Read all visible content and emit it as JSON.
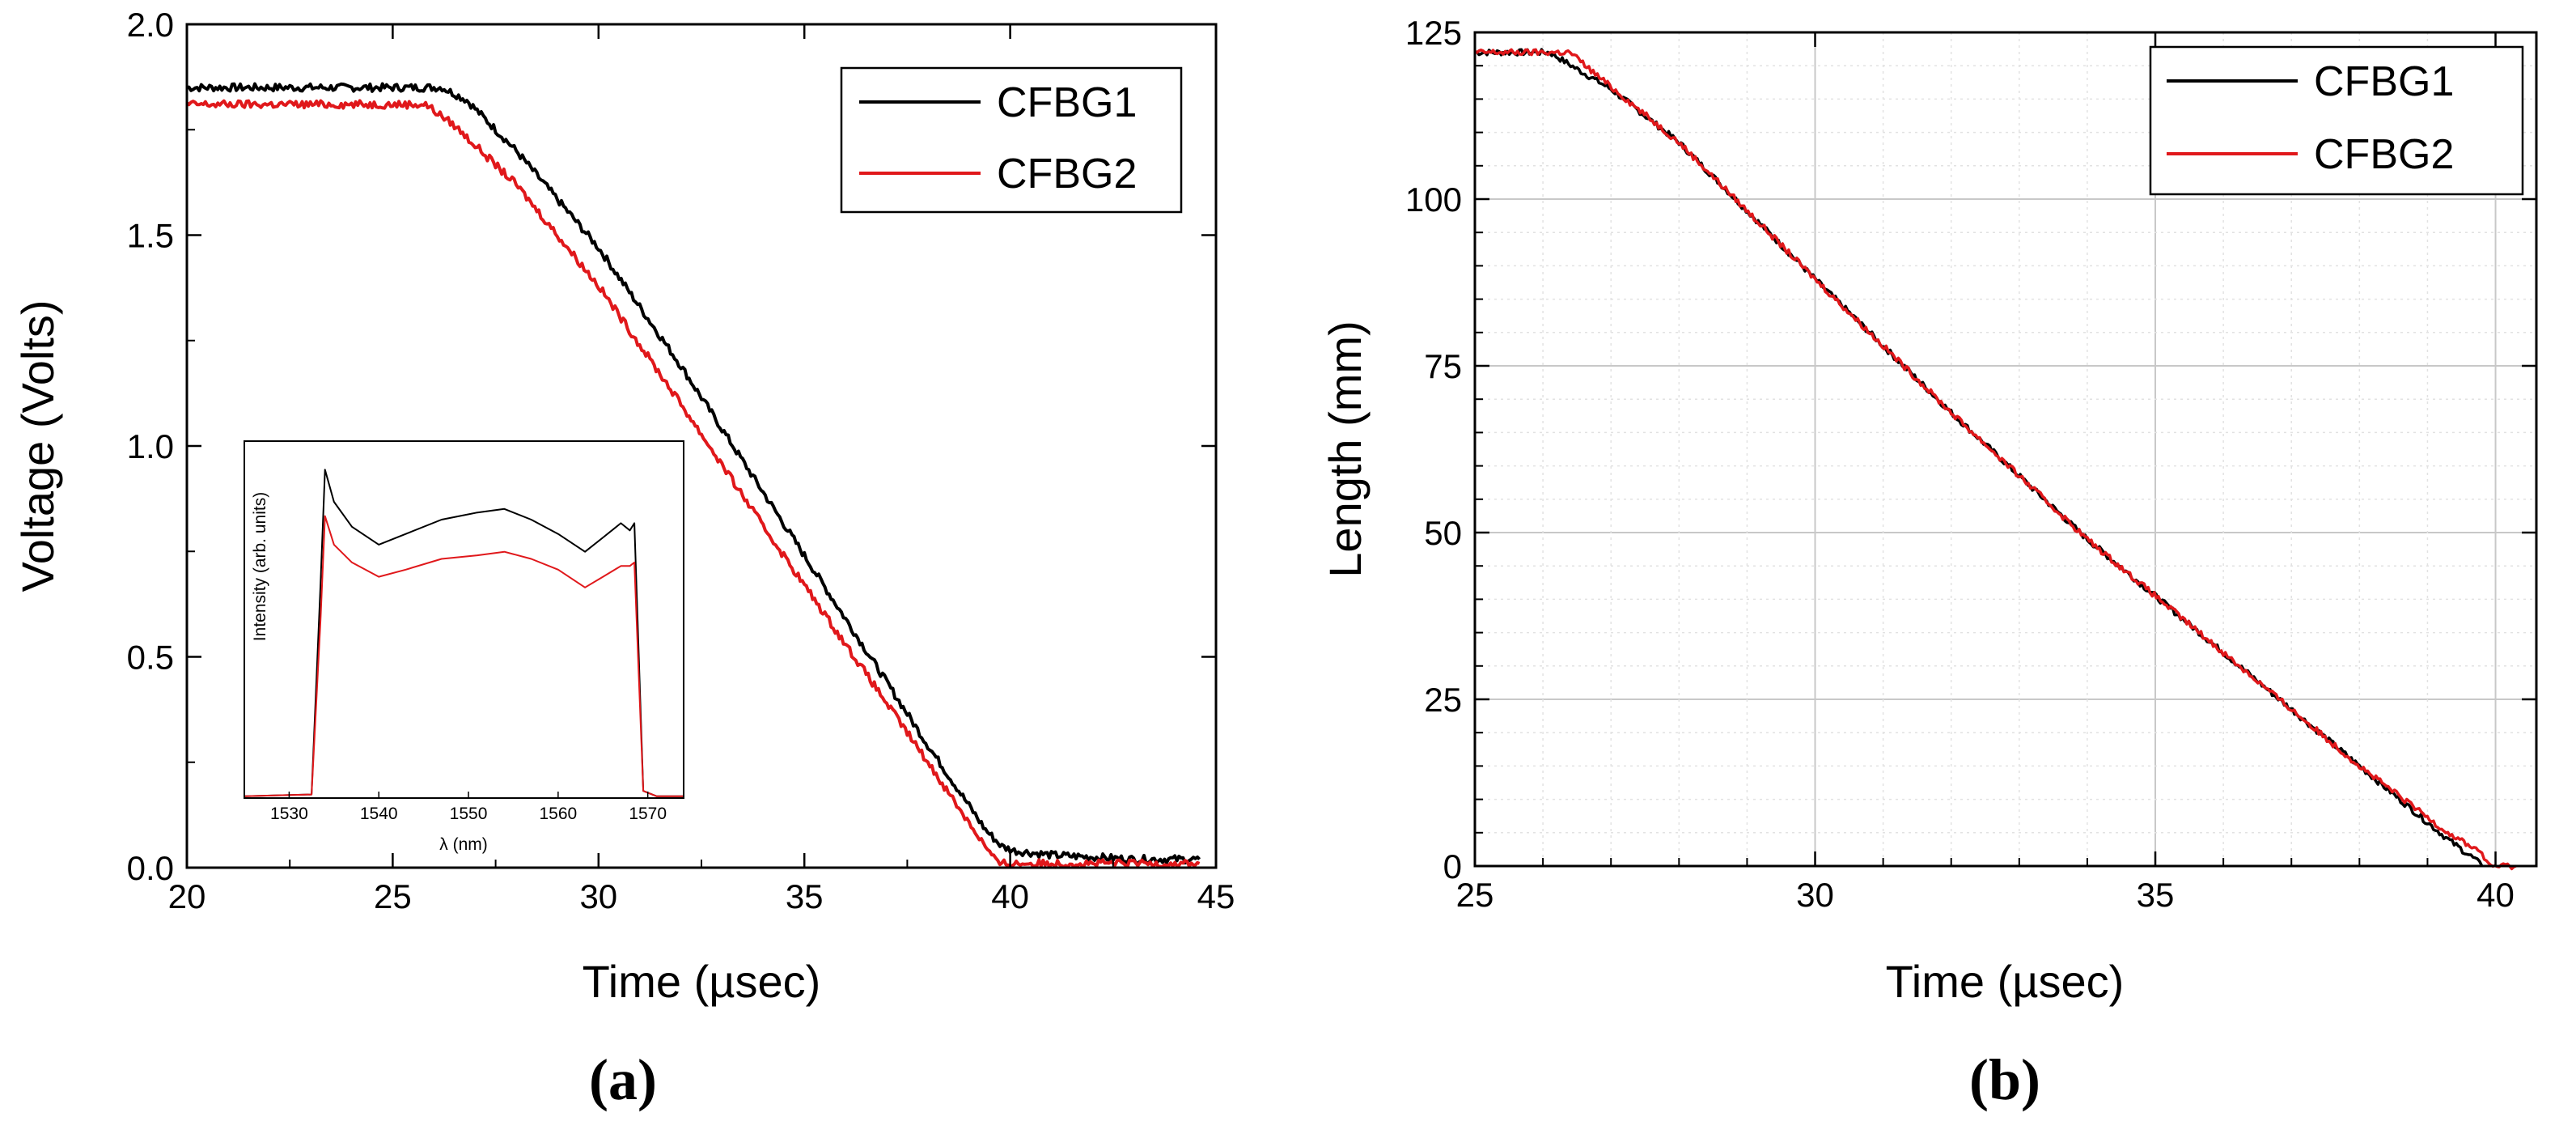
{
  "chart_data": [
    {
      "type": "line",
      "panel_label": "(a)",
      "xlabel": "Time (µsec)",
      "ylabel": "Voltage (Volts)",
      "xlim": [
        20,
        45
      ],
      "ylim": [
        0.0,
        2.0
      ],
      "xticks": [
        "20",
        "25",
        "30",
        "35",
        "40",
        "45"
      ],
      "yticks": [
        "0.0",
        "0.5",
        "1.0",
        "1.5",
        "2.0"
      ],
      "legend_position": "top-right",
      "grid": false,
      "series": [
        {
          "name": "CFBG1",
          "color": "#000000",
          "x": [
            20,
            26.2,
            26.8,
            28,
            30,
            32,
            34,
            36,
            38,
            39.4,
            39.8,
            40.1,
            41,
            42,
            43,
            44.6
          ],
          "y": [
            1.85,
            1.85,
            1.82,
            1.7,
            1.47,
            1.19,
            0.89,
            0.59,
            0.29,
            0.09,
            0.05,
            0.04,
            0.03,
            0.025,
            0.02,
            0.02
          ]
        },
        {
          "name": "CFBG2",
          "color": "#e0181b",
          "x": [
            20,
            25.8,
            26.5,
            28,
            30,
            32,
            34,
            36,
            38,
            39.4,
            39.7,
            40,
            41,
            42,
            43,
            44.6
          ],
          "y": [
            1.81,
            1.81,
            1.76,
            1.62,
            1.38,
            1.1,
            0.81,
            0.53,
            0.25,
            0.05,
            0.01,
            0.01,
            0.01,
            0.01,
            0.01,
            0.01
          ]
        }
      ],
      "inset": {
        "type": "line",
        "xlabel": "λ (nm)",
        "ylabel": "Intensity (arb. units)",
        "xlim": [
          1525,
          1574
        ],
        "ylim": [
          0,
          1.0
        ],
        "xticks": [
          "1530",
          "1540",
          "1550",
          "1560",
          "1570"
        ],
        "series": [
          {
            "name": "CFBG1",
            "color": "#000000",
            "x": [
              1525,
              1532.5,
              1533.5,
              1534,
              1535,
              1537,
              1540,
              1543,
              1547,
              1551,
              1554,
              1557,
              1560,
              1563,
              1565,
              1567,
              1568,
              1568.5,
              1569.5,
              1571,
              1574
            ],
            "y": [
              0.005,
              0.01,
              0.6,
              0.92,
              0.83,
              0.76,
              0.71,
              0.74,
              0.78,
              0.8,
              0.81,
              0.78,
              0.74,
              0.69,
              0.73,
              0.77,
              0.75,
              0.77,
              0.02,
              0.005,
              0.005
            ]
          },
          {
            "name": "CFBG2",
            "color": "#e0181b",
            "x": [
              1525,
              1532.5,
              1533.5,
              1534,
              1535,
              1537,
              1540,
              1543,
              1547,
              1551,
              1554,
              1557,
              1560,
              1563,
              1565,
              1567,
              1568,
              1568.5,
              1569.5,
              1571,
              1574
            ],
            "y": [
              0.005,
              0.01,
              0.5,
              0.79,
              0.71,
              0.66,
              0.62,
              0.64,
              0.67,
              0.68,
              0.69,
              0.67,
              0.64,
              0.59,
              0.62,
              0.65,
              0.65,
              0.66,
              0.02,
              0.005,
              0.005
            ]
          }
        ]
      }
    },
    {
      "type": "line",
      "panel_label": "(b)",
      "xlabel": "Time (µsec)",
      "ylabel": "Length (mm)",
      "xlim": [
        25,
        40.6
      ],
      "ylim": [
        0,
        125
      ],
      "xticks": [
        "25",
        "30",
        "35",
        "40"
      ],
      "yticks": [
        "0",
        "25",
        "50",
        "75",
        "100",
        "125"
      ],
      "legend_position": "top-right",
      "grid": true,
      "series": [
        {
          "name": "CFBG1",
          "color": "#000000",
          "x": [
            25,
            26.1,
            26.5,
            27,
            28,
            30,
            32,
            34,
            36,
            38,
            39.3,
            39.7,
            39.8
          ],
          "y": [
            122,
            122,
            119.5,
            116.5,
            108.5,
            88,
            68,
            49,
            32,
            15,
            4,
            1,
            0
          ]
        },
        {
          "name": "CFBG2",
          "color": "#e0181b",
          "x": [
            25,
            26.4,
            26.8,
            28,
            30,
            32,
            34,
            36,
            38,
            39.3,
            39.8,
            39.9,
            40.3
          ],
          "y": [
            122,
            122,
            118.5,
            108.5,
            88,
            68,
            49,
            32,
            15,
            5,
            2,
            0,
            0
          ]
        }
      ]
    }
  ]
}
